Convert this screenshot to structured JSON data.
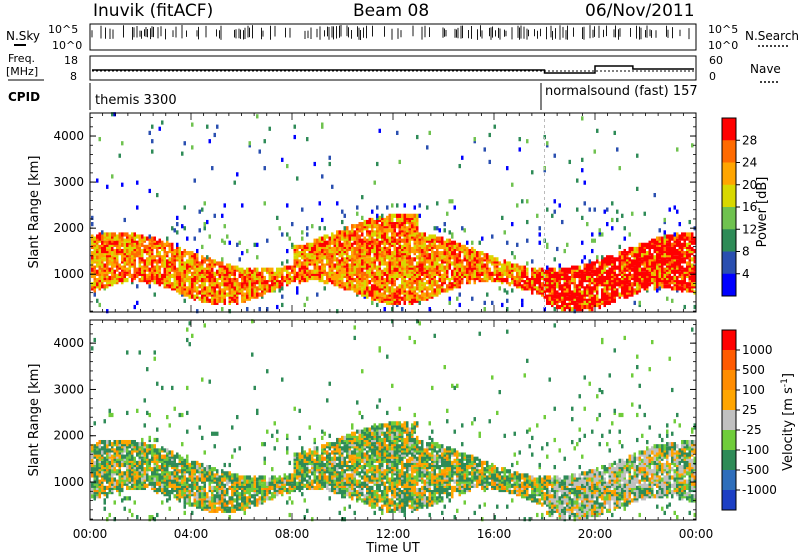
{
  "header": {
    "station": "Inuvik (fitACF)",
    "beam": "Beam 08",
    "date": "06/Nov/2011"
  },
  "sky_panel": {
    "left_label": "N.Sky",
    "right_label": "N.Search",
    "left_ticks": [
      "10^5",
      "10^0"
    ],
    "right_ticks": [
      "10^5",
      "10^0"
    ]
  },
  "freq_panel": {
    "left_label_top": "Freq.",
    "left_label_unit": "[MHz]",
    "right_label": "Nave",
    "left_ticks": [
      "18",
      "8"
    ],
    "right_ticks": [
      "60",
      "0"
    ]
  },
  "cpid_panel": {
    "label": "CPID",
    "modes": [
      "themis 3300",
      "normalsound (fast) 157"
    ]
  },
  "colors": {
    "power": [
      "#0000ff",
      "#2a4fb0",
      "#2e8b57",
      "#6fc24f",
      "#d8d800",
      "#ffa500",
      "#ff6a00",
      "#ff0000"
    ],
    "velocity": [
      "#1c3fc4",
      "#2e6ebb",
      "#2e8b57",
      "#6fcc3a",
      "#c0c0c0",
      "#ffa500",
      "#ff8c00",
      "#ff5a00",
      "#ff0000"
    ]
  },
  "chart_data": [
    {
      "type": "heatmap",
      "name": "power",
      "xlabel": "",
      "ylabel": "Slant Range [km]",
      "xlim": [
        0,
        24
      ],
      "ylim": [
        180,
        4500
      ],
      "yticks": [
        "1000",
        "2000",
        "3000",
        "4000"
      ],
      "colorbar_label": "Power [dB]",
      "colorbar_ticks": [
        "28",
        "24",
        "20",
        "16",
        "12",
        "8",
        "4"
      ],
      "colorbar_range": [
        0,
        32
      ],
      "mode_change_hour": 18.0
    },
    {
      "type": "heatmap",
      "name": "velocity",
      "xlabel": "Time UT",
      "ylabel": "Slant Range [km]",
      "xlim": [
        0,
        24
      ],
      "ylim": [
        180,
        4500
      ],
      "xticks": [
        "00:00",
        "04:00",
        "08:00",
        "12:00",
        "16:00",
        "20:00",
        "00:00"
      ],
      "yticks": [
        "1000",
        "2000",
        "3000",
        "4000"
      ],
      "colorbar_label": "Velocity [m s",
      "colorbar_unit_sup": "-1",
      "colorbar_unit_close": "]",
      "colorbar_ticks": [
        "1000",
        "500",
        "100",
        "25",
        "-25",
        "-100",
        "-500",
        "-1000"
      ]
    }
  ]
}
